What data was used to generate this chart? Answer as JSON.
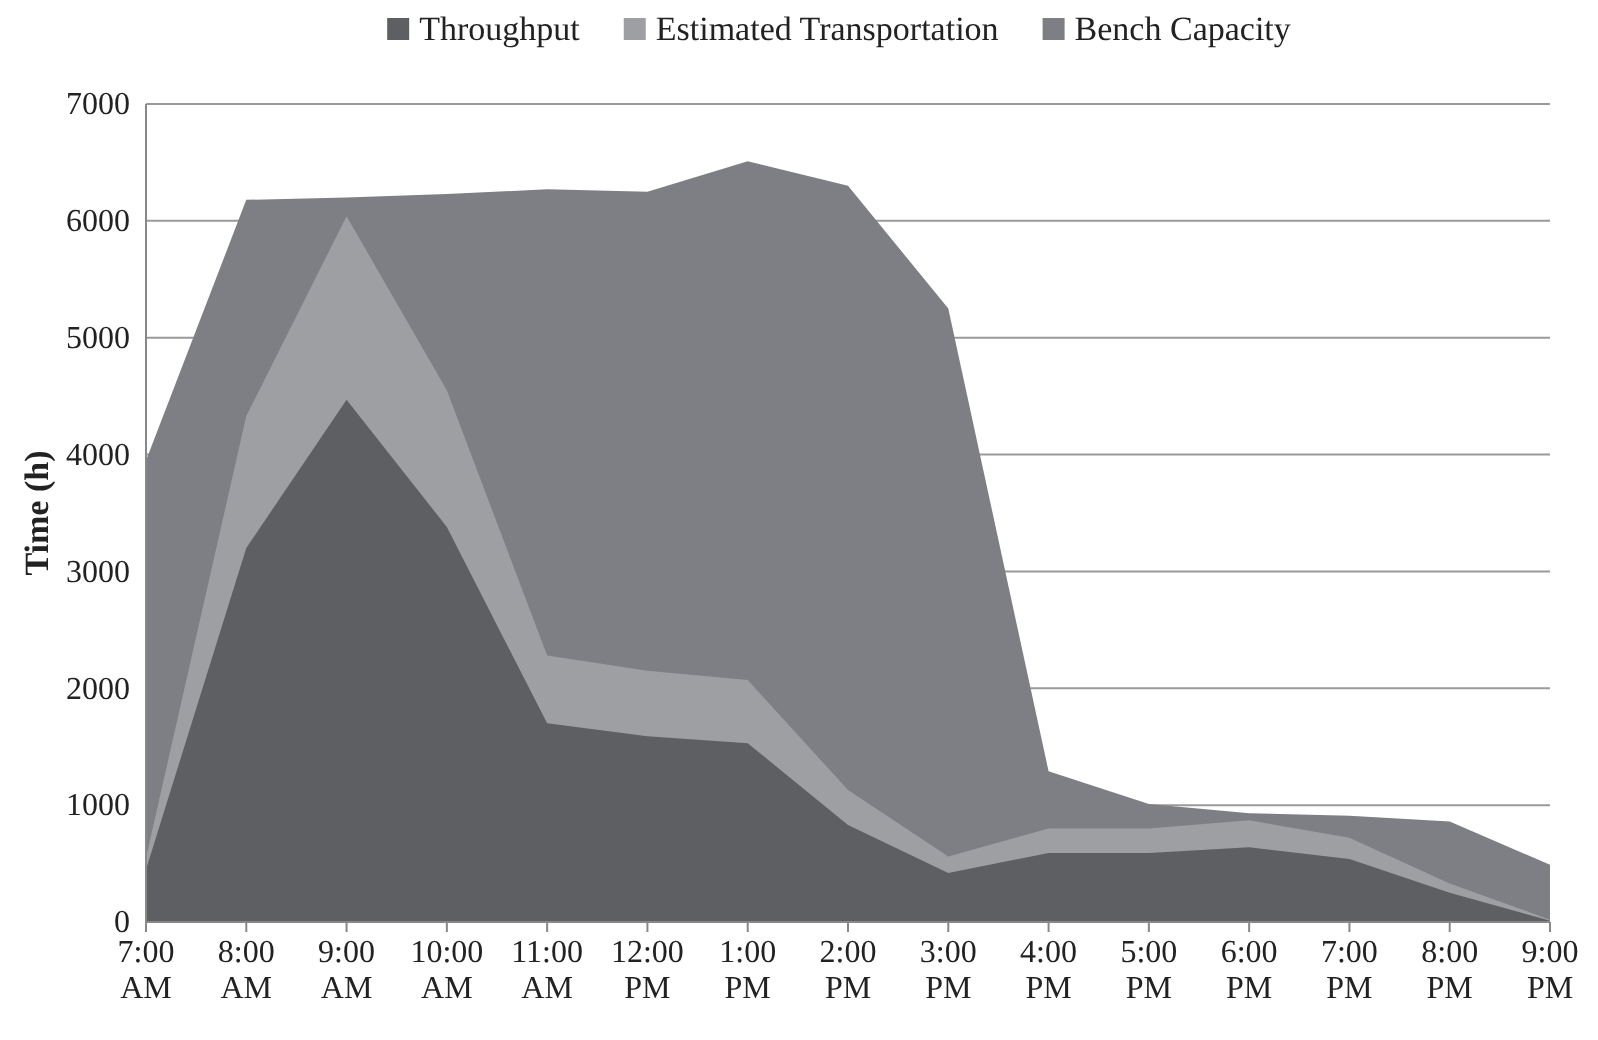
{
  "chart_data": {
    "type": "area",
    "ylabel": "Time (h)",
    "categories": [
      "7:00 AM",
      "8:00 AM",
      "9:00 AM",
      "10:00 AM",
      "11:00 AM",
      "12:00 PM",
      "1:00 PM",
      "2:00 PM",
      "3:00 PM",
      "4:00 PM",
      "5:00 PM",
      "6:00 PM",
      "7:00 PM",
      "8:00 PM",
      "9:00 PM"
    ],
    "series": [
      {
        "name": "Throughput",
        "color": "#5e5f63",
        "values": [
          450,
          3200,
          4470,
          3380,
          1700,
          1590,
          1530,
          830,
          420,
          590,
          590,
          640,
          540,
          250,
          10
        ]
      },
      {
        "name": "Estimated Transportation",
        "color": "#9d9fa3",
        "values": [
          550,
          4330,
          6040,
          4550,
          2280,
          2150,
          2070,
          1130,
          560,
          800,
          800,
          870,
          720,
          330,
          20
        ]
      },
      {
        "name": "Bench Capacity",
        "color": "#7e7f84",
        "values": [
          3950,
          6180,
          6200,
          6230,
          6270,
          6250,
          6510,
          6300,
          5250,
          1290,
          1010,
          930,
          910,
          860,
          490
        ]
      }
    ],
    "ylim": [
      0,
      7000
    ],
    "yticks": [
      0,
      1000,
      2000,
      3000,
      4000,
      5000,
      6000,
      7000
    ],
    "grid": "y",
    "legend": "top"
  }
}
